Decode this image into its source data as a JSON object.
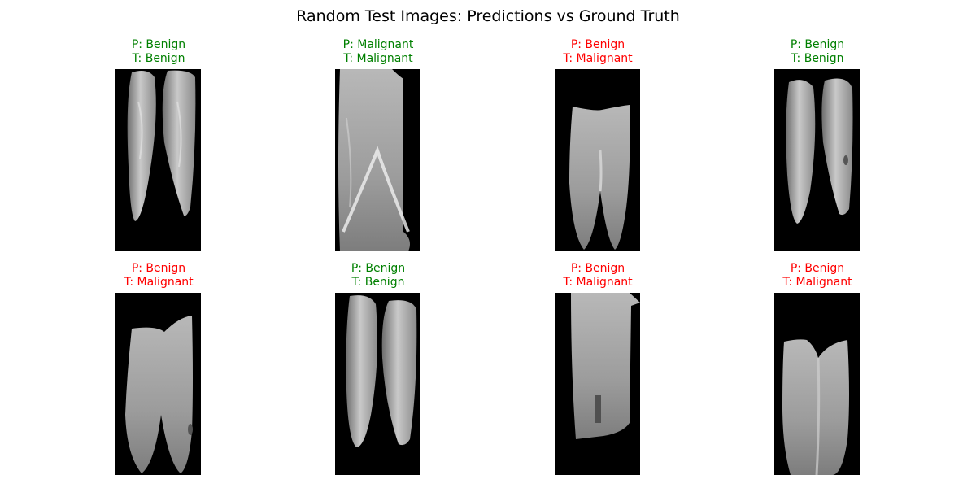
{
  "figure": {
    "title": "Random Test Images: Predictions vs Ground Truth"
  },
  "colors": {
    "correct": "#008000",
    "incorrect": "#ff0000"
  },
  "panels": [
    {
      "pred": "P: Benign",
      "truth": "T: Benign",
      "correct": true,
      "image": "two-separate-breast-lobes"
    },
    {
      "pred": "P: Malignant",
      "truth": "T: Malignant",
      "correct": true,
      "image": "zoomed-breast-tissue-fold"
    },
    {
      "pred": "P: Benign",
      "truth": "T: Malignant",
      "correct": false,
      "image": "joined-breast-lobes"
    },
    {
      "pred": "P: Benign",
      "truth": "T: Benign",
      "correct": true,
      "image": "two-separate-breast-lobes"
    },
    {
      "pred": "P: Benign",
      "truth": "T: Malignant",
      "correct": false,
      "image": "joined-breast-lobes"
    },
    {
      "pred": "P: Benign",
      "truth": "T: Benign",
      "correct": true,
      "image": "two-separate-breast-lobes"
    },
    {
      "pred": "P: Benign",
      "truth": "T: Malignant",
      "correct": false,
      "image": "tilted-breast-tissue-crop"
    },
    {
      "pred": "P: Benign",
      "truth": "T: Malignant",
      "correct": false,
      "image": "joined-breast-lobes"
    }
  ]
}
